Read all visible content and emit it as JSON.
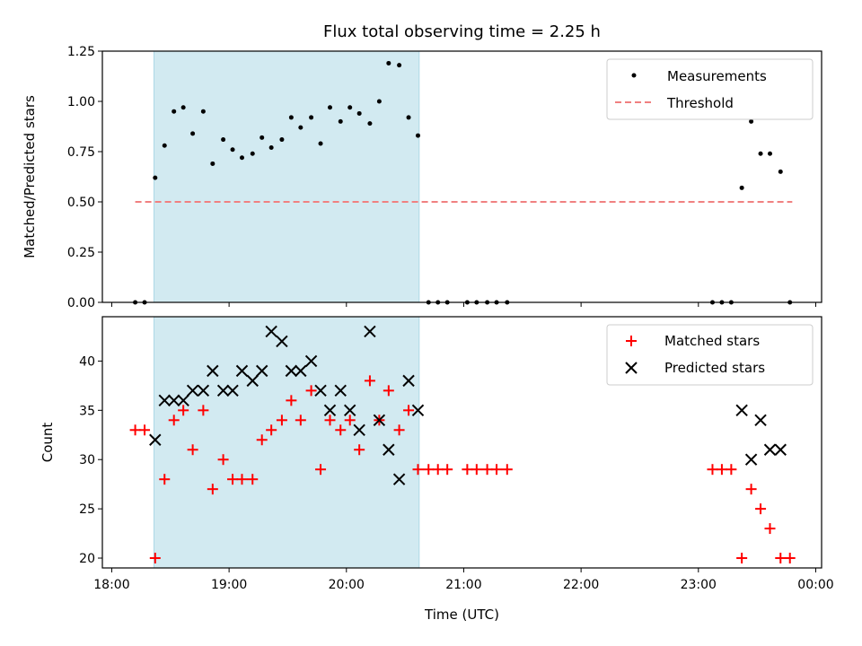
{
  "chart_data": [
    {
      "type": "scatter",
      "title": "Flux total observing time = 2.25 h",
      "ylabel": "Matched/Predicted stars",
      "xlabel": "",
      "xlim": [
        -0.08,
        6.05
      ],
      "ylim": [
        0,
        1.25
      ],
      "yticks": [
        "0.00",
        "0.25",
        "0.50",
        "0.75",
        "1.00",
        "1.25"
      ],
      "shaded_span": {
        "x0": 0.36,
        "x1": 2.62,
        "color": "#add8e6"
      },
      "threshold": {
        "name": "Threshold",
        "y": 0.5,
        "x": [
          0.2,
          5.8
        ],
        "color": "#f08080"
      },
      "legend": {
        "position": "upper right",
        "entries": [
          "Measurements",
          "Threshold"
        ]
      },
      "series": [
        {
          "name": "Measurements",
          "x": [
            0.2,
            0.28,
            0.37,
            0.45,
            0.53,
            0.61,
            0.69,
            0.78,
            0.86,
            0.95,
            1.03,
            1.11,
            1.2,
            1.28,
            1.36,
            1.45,
            1.53,
            1.61,
            1.7,
            1.78,
            1.86,
            1.95,
            2.03,
            2.11,
            2.2,
            2.28,
            2.36,
            2.45,
            2.53,
            2.61,
            2.7,
            2.78,
            2.86,
            3.03,
            3.11,
            3.2,
            3.28,
            3.37,
            5.12,
            5.2,
            5.28,
            5.37,
            5.45,
            5.53,
            5.61,
            5.7,
            5.78
          ],
          "y": [
            0,
            0,
            0.62,
            0.78,
            0.95,
            0.97,
            0.84,
            0.95,
            0.69,
            0.81,
            0.76,
            0.72,
            0.74,
            0.82,
            0.77,
            0.81,
            0.92,
            0.87,
            0.92,
            0.79,
            0.97,
            0.9,
            0.97,
            0.94,
            0.89,
            1.0,
            1.19,
            1.18,
            0.92,
            0.83,
            0,
            0,
            0,
            0,
            0,
            0,
            0,
            0,
            0,
            0,
            0,
            0.57,
            0.9,
            0.74,
            0.74,
            0.65,
            0
          ]
        }
      ]
    },
    {
      "type": "scatter",
      "title": "",
      "ylabel": "Count",
      "xlabel": "Time (UTC)",
      "xlim": [
        -0.08,
        6.05
      ],
      "ylim": [
        19,
        44.5
      ],
      "yticks": [
        "20",
        "25",
        "30",
        "35",
        "40"
      ],
      "xticks": [
        "18:00",
        "19:00",
        "20:00",
        "21:00",
        "22:00",
        "23:00",
        "00:00"
      ],
      "shaded_span": {
        "x0": 0.36,
        "x1": 2.62,
        "color": "#add8e6"
      },
      "legend": {
        "position": "upper right",
        "entries": [
          "Matched stars",
          "Predicted stars"
        ]
      },
      "series": [
        {
          "name": "Matched stars",
          "marker": "plus",
          "color": "#ff0000",
          "x": [
            0.2,
            0.28,
            0.37,
            0.45,
            0.53,
            0.61,
            0.69,
            0.78,
            0.86,
            0.95,
            1.03,
            1.11,
            1.2,
            1.28,
            1.36,
            1.45,
            1.53,
            1.61,
            1.7,
            1.78,
            1.86,
            1.95,
            2.03,
            2.11,
            2.2,
            2.28,
            2.36,
            2.45,
            2.53,
            2.61,
            2.7,
            2.78,
            2.86,
            3.03,
            3.11,
            3.2,
            3.28,
            3.37,
            5.12,
            5.2,
            5.28,
            5.37,
            5.45,
            5.53,
            5.61,
            5.7,
            5.78
          ],
          "y": [
            33,
            33,
            20,
            28,
            34,
            35,
            31,
            35,
            27,
            30,
            28,
            28,
            28,
            32,
            33,
            34,
            36,
            34,
            37,
            29,
            34,
            33,
            34,
            31,
            38,
            34,
            37,
            33,
            35,
            29,
            29,
            29,
            29,
            29,
            29,
            29,
            29,
            29,
            29,
            29,
            29,
            20,
            27,
            25,
            23,
            20,
            20
          ]
        },
        {
          "name": "Predicted stars",
          "marker": "x",
          "color": "#000000",
          "x": [
            0.37,
            0.45,
            0.53,
            0.61,
            0.69,
            0.78,
            0.86,
            0.95,
            1.03,
            1.11,
            1.2,
            1.28,
            1.36,
            1.45,
            1.53,
            1.61,
            1.7,
            1.78,
            1.86,
            1.95,
            2.03,
            2.11,
            2.2,
            2.28,
            2.36,
            2.45,
            2.53,
            2.61,
            5.37,
            5.45,
            5.53,
            5.61,
            5.7
          ],
          "y": [
            32,
            36,
            36,
            36,
            37,
            37,
            39,
            37,
            37,
            39,
            38,
            39,
            43,
            42,
            39,
            39,
            40,
            37,
            35,
            37,
            35,
            33,
            43,
            34,
            31,
            28,
            38,
            35,
            35,
            30,
            34,
            31,
            31
          ]
        }
      ]
    }
  ]
}
